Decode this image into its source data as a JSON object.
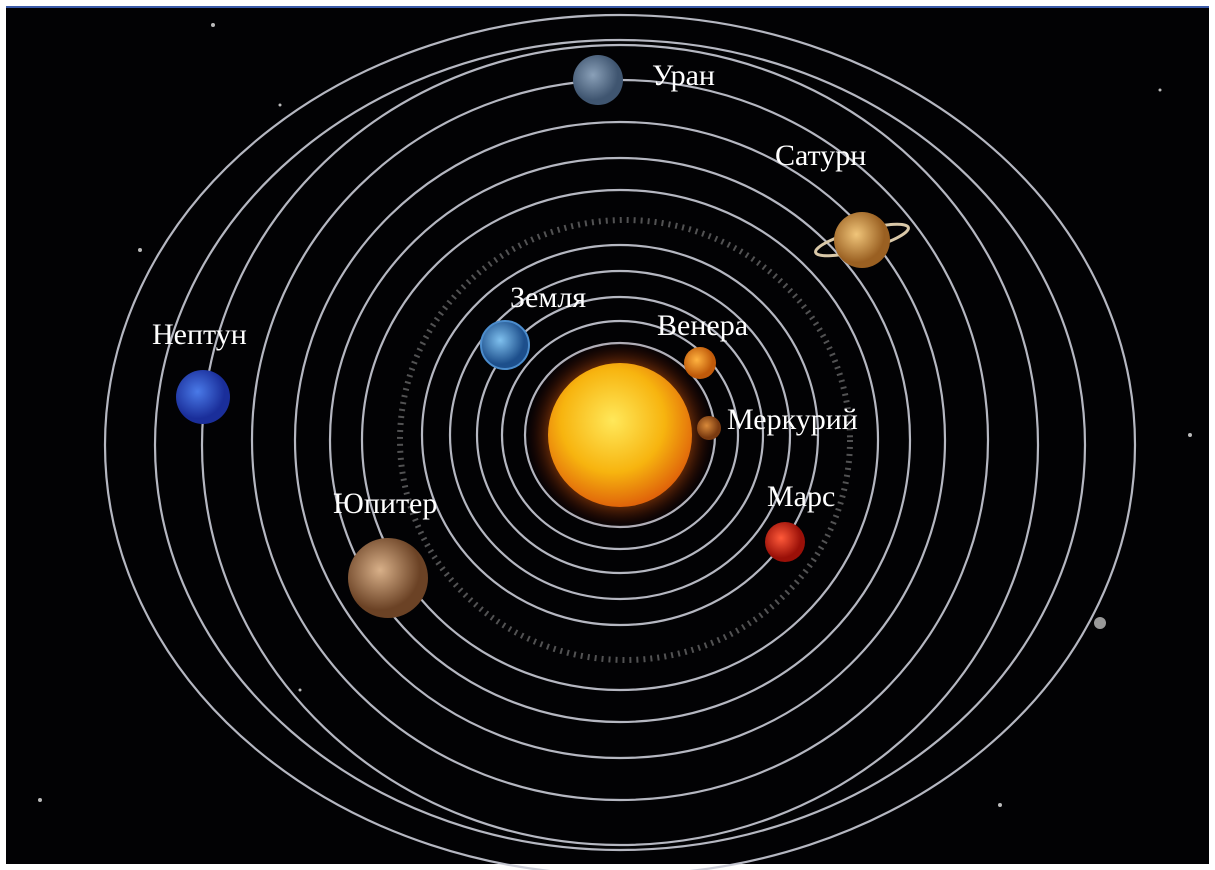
{
  "planets": [
    {
      "label": "Уран"
    },
    {
      "label": "Сатурн"
    },
    {
      "label": "Нептун"
    },
    {
      "label": "Земля"
    },
    {
      "label": "Венера"
    },
    {
      "label": "Меркурий"
    },
    {
      "label": "Марс"
    },
    {
      "label": "Юпитер"
    }
  ]
}
